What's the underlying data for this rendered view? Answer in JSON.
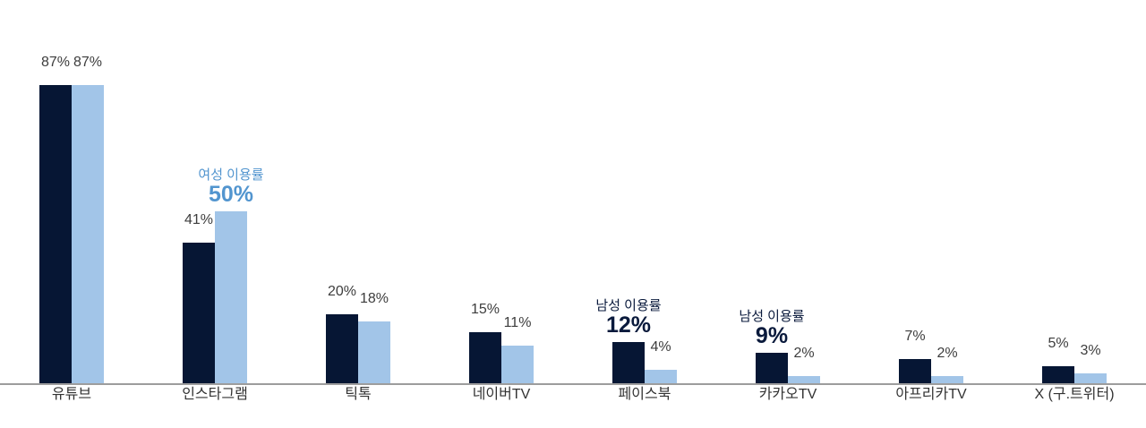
{
  "chart_data": {
    "type": "bar",
    "title": "",
    "xlabel": "",
    "ylabel": "",
    "ylim": [
      0,
      100
    ],
    "grid": false,
    "legend_position": "none",
    "value_label_suffix": "%",
    "categories": [
      "유튜브",
      "인스타그램",
      "틱톡",
      "네이버TV",
      "페이스북",
      "카카오TV",
      "아프리카TV",
      "X (구.트위터)"
    ],
    "series": [
      {
        "name": "남성 이용률",
        "color": "#061634",
        "values": [
          87,
          41,
          20,
          15,
          12,
          9,
          7,
          5
        ]
      },
      {
        "name": "여성 이용률",
        "color": "#a2c5e8",
        "values": [
          87,
          50,
          18,
          11,
          4,
          2,
          2,
          3
        ]
      }
    ],
    "value_labels": [
      "87%",
      "41%",
      "20%",
      "15%",
      "12%",
      "9%",
      "7%",
      "5%",
      "87%",
      "50%",
      "18%",
      "11%",
      "4%",
      "2%",
      "2%",
      "3%"
    ],
    "annotations": [
      {
        "category_index": 1,
        "series_index": 1,
        "label": "여성 이용률",
        "value_text": "50%",
        "color": "#5295cf"
      },
      {
        "category_index": 4,
        "series_index": 0,
        "label": "남성 이용률",
        "value_text": "12%",
        "color": "#0a1a3c"
      },
      {
        "category_index": 5,
        "series_index": 0,
        "label": "남성 이용률",
        "value_text": "9%",
        "color": "#0a1a3c"
      }
    ]
  },
  "colors": {
    "background": "#ffffff",
    "axis_line": "#9d9d9d",
    "value_text": "#3d3d3d",
    "category_text": "#333333",
    "male_bar": "#061634",
    "female_bar": "#a2c5e8",
    "female_annotation_text": "#5295cf",
    "male_annotation_text": "#0a1a3c"
  }
}
